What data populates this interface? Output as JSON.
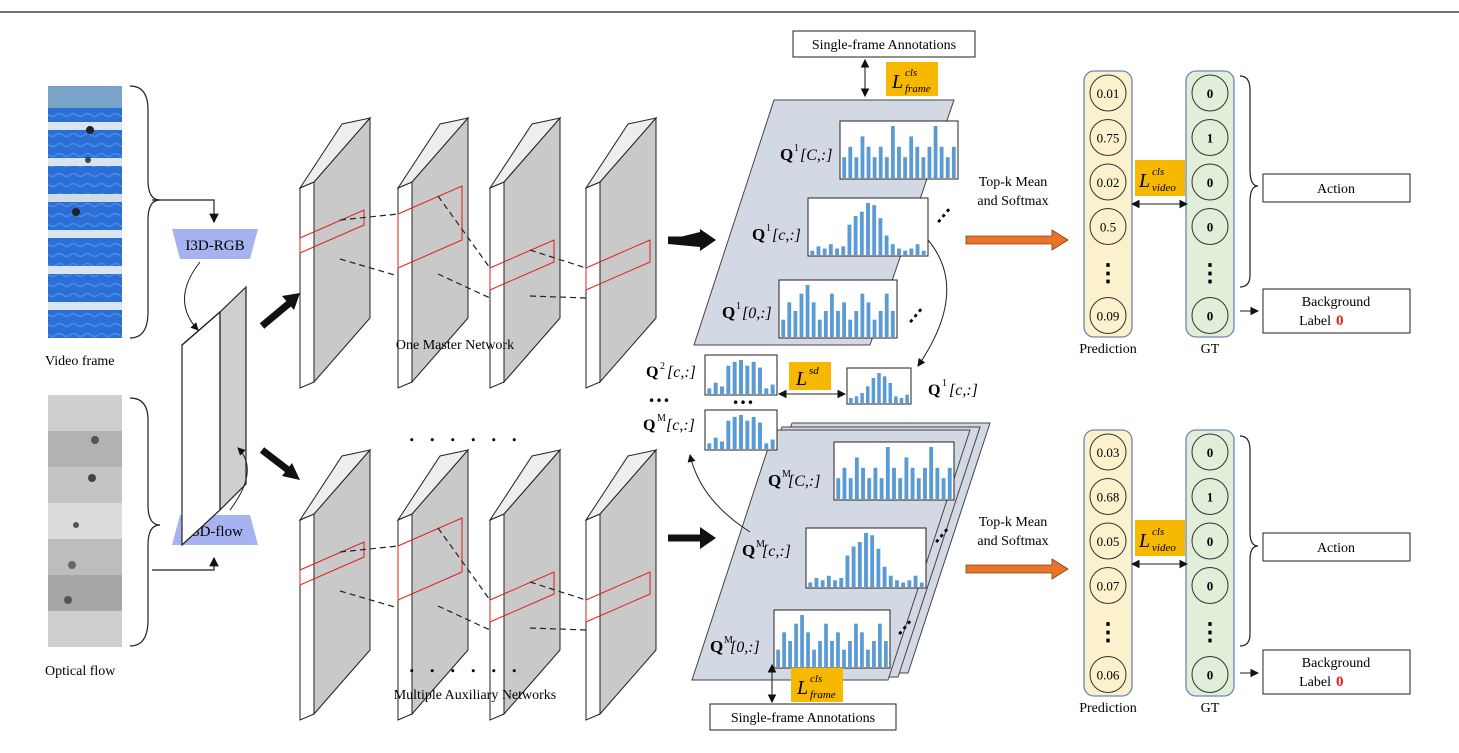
{
  "top_rule": true,
  "inputs": {
    "video_caption": "Video frame",
    "flow_caption": "Optical flow"
  },
  "backbones": {
    "rgb": "I3D-RGB",
    "flow": "I3D-flow"
  },
  "networks": {
    "master_caption": "One Master Network",
    "aux_caption": "Multiple Auxiliary Networks"
  },
  "annotations": {
    "top_box": "Single-frame Annotations",
    "bottom_box": "Single-frame Annotations",
    "loss_frame_base": "L",
    "loss_frame_sup": "cls",
    "loss_frame_sub": "frame"
  },
  "master_panel": {
    "rows": [
      {
        "Q": "Q",
        "sup": "1",
        "idx": "[C,:]",
        "bars": [
          2,
          3,
          2,
          4,
          3,
          2,
          3,
          2,
          5,
          3,
          2,
          4,
          3,
          2,
          3,
          5,
          3,
          2,
          3
        ]
      },
      {
        "Q": "Q",
        "sup": "1",
        "idx": "[c,:]",
        "bars": [
          2,
          4,
          3,
          5,
          3,
          4,
          14,
          18,
          20,
          24,
          23,
          17,
          9,
          5,
          3,
          2,
          3,
          5,
          2
        ]
      },
      {
        "Q": "Q",
        "sup": "1",
        "idx": "[0,:]",
        "bars": [
          2,
          4,
          3,
          5,
          6,
          4,
          2,
          3,
          5,
          3,
          4,
          2,
          3,
          5,
          4,
          2,
          3,
          5,
          3
        ]
      }
    ],
    "dots": "⋮"
  },
  "aux_panel": {
    "rows": [
      {
        "Q": "Q",
        "sup": "M",
        "idx": "[C,:]",
        "bars": [
          2,
          3,
          2,
          4,
          3,
          2,
          3,
          2,
          5,
          3,
          2,
          4,
          3,
          2,
          3,
          5,
          3,
          2,
          3
        ]
      },
      {
        "Q": "Q",
        "sup": "M",
        "idx": "[c,:]",
        "bars": [
          2,
          4,
          3,
          5,
          3,
          4,
          14,
          18,
          20,
          24,
          23,
          17,
          9,
          5,
          3,
          2,
          3,
          5,
          2
        ]
      },
      {
        "Q": "Q",
        "sup": "M",
        "idx": "[0,:]",
        "bars": [
          2,
          4,
          3,
          5,
          6,
          4,
          2,
          3,
          5,
          3,
          4,
          2,
          3,
          5,
          4,
          2,
          3,
          5,
          3
        ]
      }
    ]
  },
  "distill": {
    "q2_label": "Q",
    "q2_sup": "2",
    "q2_idx": "[c,:]",
    "qm_label": "Q",
    "qm_sup": "M",
    "qm_idx": "[c,:]",
    "q1_label": "Q",
    "q1_sup": "1",
    "q1_idx": "[c,:]",
    "ellipsis": "…",
    "loss_base": "L",
    "loss_sup": "sd",
    "small_bars": [
      3,
      6,
      4,
      15,
      17,
      18,
      15,
      17,
      14,
      3,
      5
    ],
    "small_bars_q1": [
      3,
      4,
      6,
      10,
      15,
      18,
      16,
      12,
      4,
      3,
      5
    ]
  },
  "pooling": {
    "top_text_1": "Top-k Mean",
    "top_text_2": "and Softmax",
    "bottom_text_1": "Top-k Mean",
    "bottom_text_2": "and Softmax"
  },
  "prediction_top": {
    "values": [
      "0.01",
      "0.75",
      "0.02",
      "0.5",
      "⋮",
      "0.09"
    ],
    "caption": "Prediction"
  },
  "gt_top": {
    "values": [
      "0",
      "1",
      "0",
      "0",
      "⋮",
      "0"
    ],
    "caption": "GT"
  },
  "prediction_bottom": {
    "values": [
      "0.03",
      "0.68",
      "0.05",
      "0.07",
      "⋮",
      "0.06"
    ],
    "caption": "Prediction"
  },
  "gt_bottom": {
    "values": [
      "0",
      "1",
      "0",
      "0",
      "⋮",
      "0"
    ],
    "caption": "GT"
  },
  "loss_video": {
    "base": "L",
    "sup": "cls",
    "sub": "video"
  },
  "outputs": {
    "action": "Action",
    "background_line1": "Background",
    "background_line2": "Label",
    "background_zero": "0"
  },
  "colors": {
    "loss_box": "#F6B800",
    "backbone": "#A7B3F0",
    "panel": "#D3D9E4",
    "bar": "#5B9BD5",
    "pred_fill": "#FBF1CC",
    "pred_stroke": "#6E86B8",
    "gt_fill": "#E1EED9",
    "arrow_orange": "#E8742A",
    "red": "#E0201C"
  }
}
